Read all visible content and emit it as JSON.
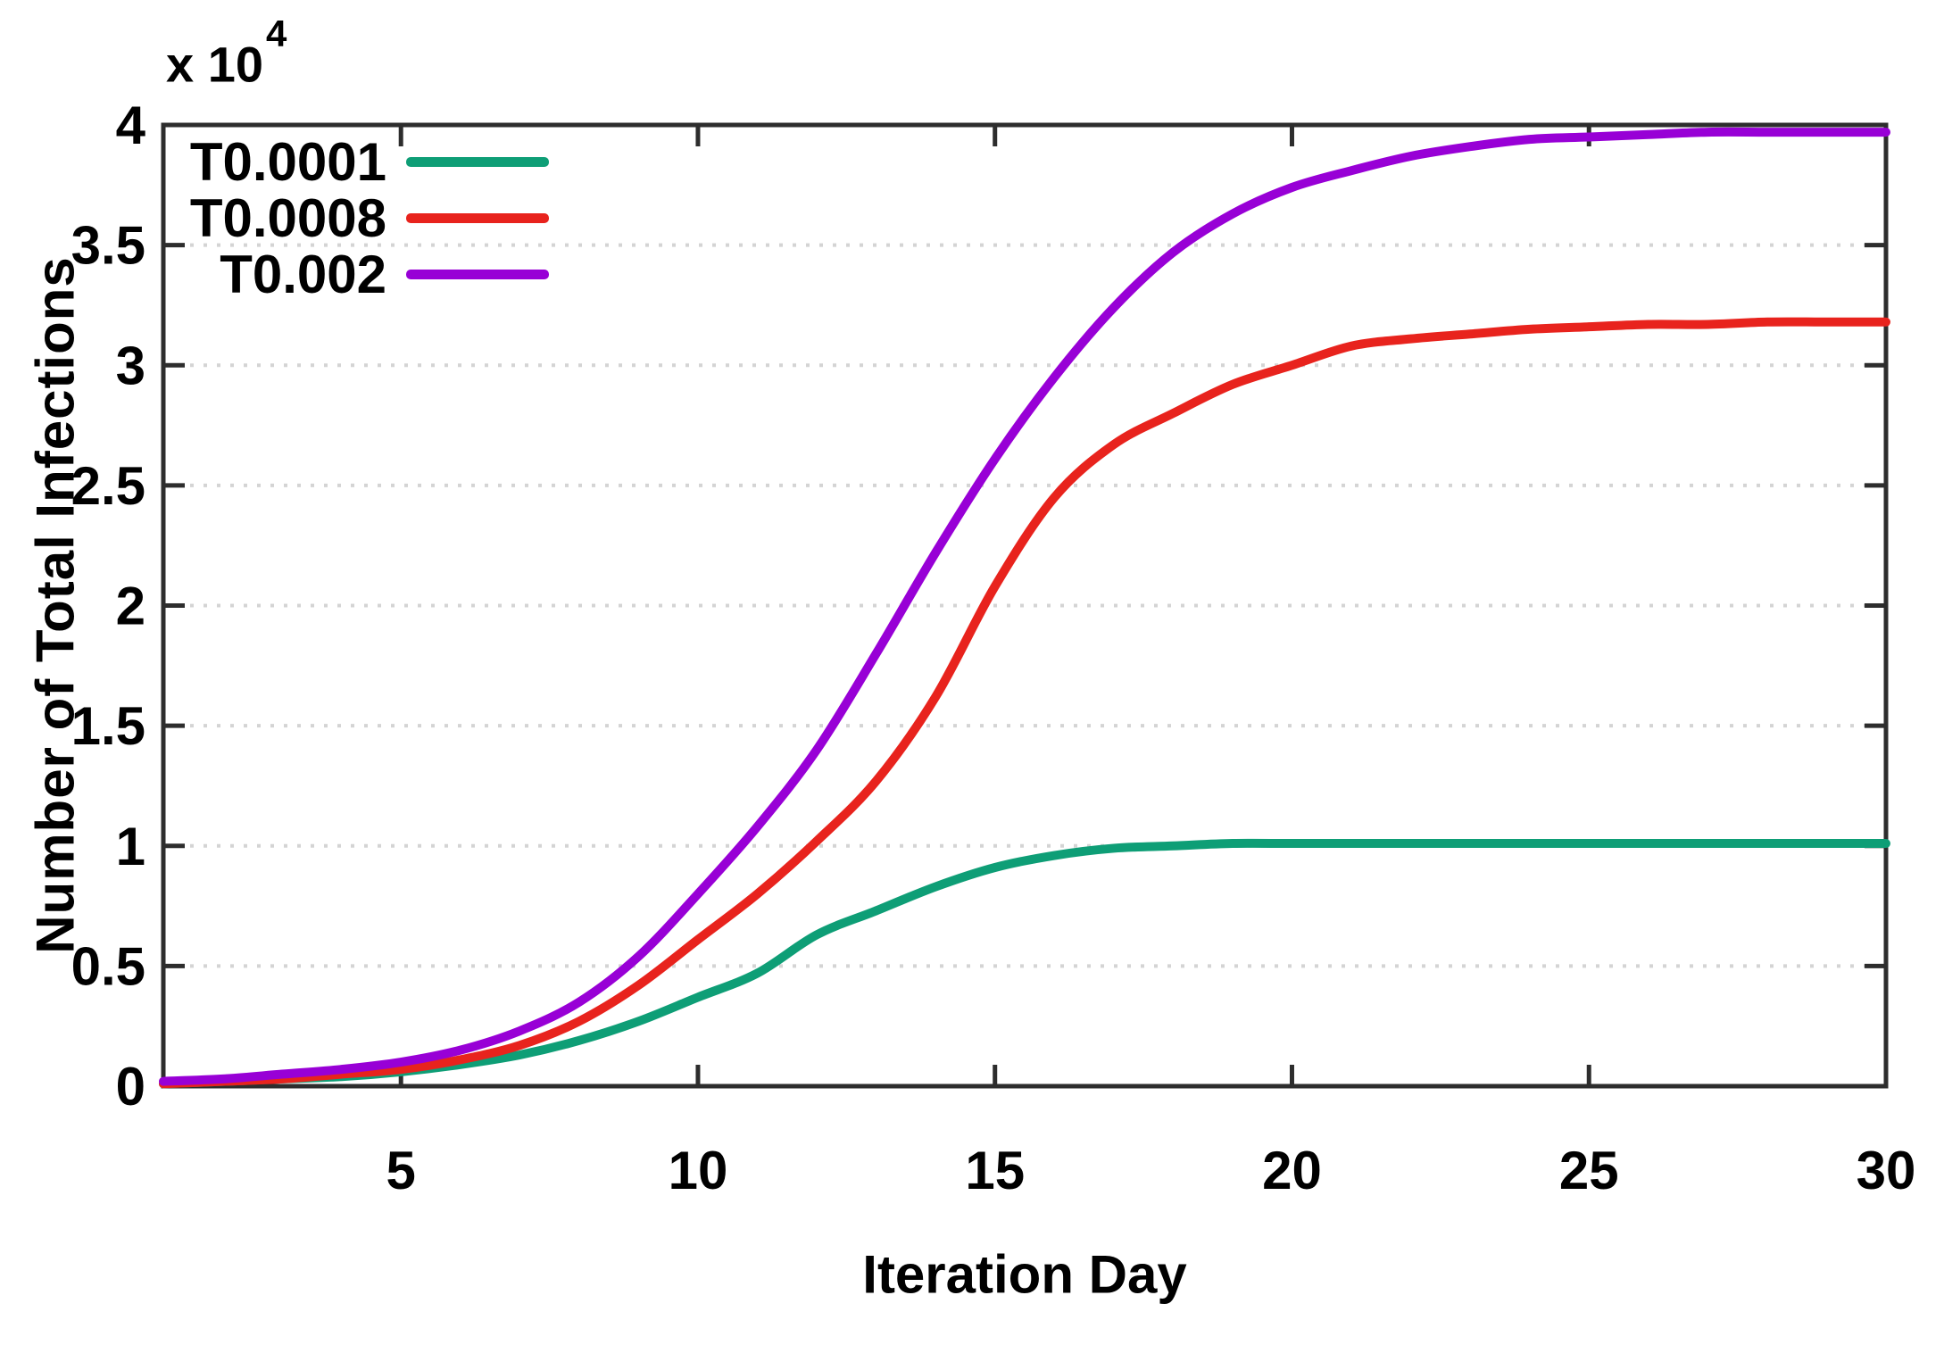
{
  "chart_data": {
    "type": "line",
    "title": "",
    "xlabel": "Iteration Day",
    "ylabel": "Number of Total Infections",
    "y_axis_multiplier": {
      "base": "x 10",
      "exponent": "4"
    },
    "xlim": [
      1,
      30
    ],
    "ylim": [
      0,
      4
    ],
    "x_ticks": [
      5,
      10,
      15,
      20,
      25,
      30
    ],
    "y_ticks": [
      0,
      0.5,
      1,
      1.5,
      2,
      2.5,
      3,
      3.5,
      4
    ],
    "grid": "horizontal dotted gridlines at each y tick",
    "legend_position": "top-left inside plot area",
    "axis_color": "#2d2d2d",
    "grid_color": "#d4d4d4",
    "x": [
      1,
      2,
      3,
      4,
      5,
      6,
      7,
      8,
      9,
      10,
      11,
      12,
      13,
      14,
      15,
      16,
      17,
      18,
      19,
      20,
      21,
      22,
      23,
      24,
      25,
      26,
      27,
      28,
      29,
      30
    ],
    "series": [
      {
        "name": "T0.0001",
        "color": "#0e9e76",
        "values": [
          0.01,
          0.02,
          0.03,
          0.04,
          0.06,
          0.09,
          0.13,
          0.19,
          0.27,
          0.37,
          0.47,
          0.63,
          0.73,
          0.83,
          0.91,
          0.96,
          0.99,
          1.0,
          1.01,
          1.01,
          1.01,
          1.01,
          1.01,
          1.01,
          1.01,
          1.01,
          1.01,
          1.01,
          1.01,
          1.01
        ]
      },
      {
        "name": "T0.0008",
        "color": "#e8231d",
        "values": [
          0.01,
          0.02,
          0.03,
          0.05,
          0.07,
          0.11,
          0.17,
          0.27,
          0.42,
          0.61,
          0.8,
          1.02,
          1.27,
          1.62,
          2.08,
          2.45,
          2.67,
          2.8,
          2.92,
          3.0,
          3.08,
          3.11,
          3.13,
          3.15,
          3.16,
          3.17,
          3.17,
          3.18,
          3.18,
          3.18
        ]
      },
      {
        "name": "T0.002",
        "color": "#9800d6",
        "values": [
          0.02,
          0.03,
          0.05,
          0.07,
          0.1,
          0.15,
          0.23,
          0.35,
          0.54,
          0.8,
          1.08,
          1.4,
          1.8,
          2.22,
          2.61,
          2.95,
          3.24,
          3.47,
          3.63,
          3.74,
          3.81,
          3.87,
          3.91,
          3.94,
          3.95,
          3.96,
          3.97,
          3.97,
          3.97,
          3.97
        ]
      }
    ]
  }
}
